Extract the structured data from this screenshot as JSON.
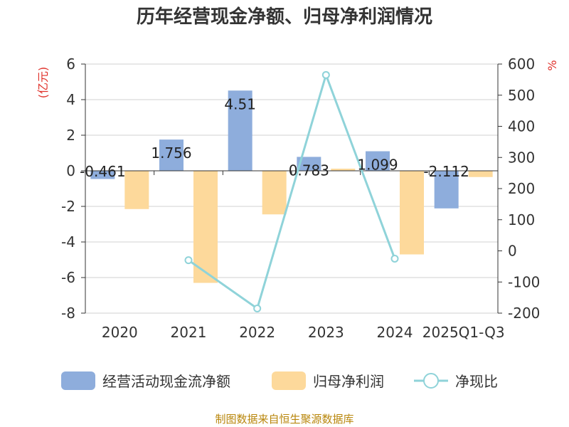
{
  "chart_data": {
    "type": "bar",
    "title": "历年经营现金净额、归母净利润情况",
    "categories": [
      "2020",
      "2021",
      "2022",
      "2023",
      "2024",
      "2025Q1-Q3"
    ],
    "y_left": {
      "unit": "(亿元)",
      "range": [
        -8,
        6
      ],
      "ticks": [
        "6",
        "4",
        "2",
        "0",
        "-2",
        "-4",
        "-6",
        "-8"
      ]
    },
    "y_right": {
      "unit": "%",
      "range": [
        -200,
        600
      ],
      "ticks": [
        "600",
        "500",
        "400",
        "300",
        "200",
        "100",
        "0",
        "-100",
        "-200"
      ]
    },
    "grid": true,
    "legend_position": "bottom",
    "series": [
      {
        "name": "经营活动现金流净额",
        "axis": "left",
        "color": "#8eaddc",
        "values": [
          -0.461,
          1.756,
          4.51,
          0.783,
          1.099,
          -2.112
        ],
        "labels": [
          "-0.461",
          "1.756",
          "4.51",
          "0.783",
          "1.099",
          "-2.112"
        ]
      },
      {
        "name": "归母净利润",
        "axis": "left",
        "color": "#fdd99b",
        "values": [
          -2.15,
          -6.3,
          -2.45,
          0.12,
          -4.7,
          -0.35
        ]
      },
      {
        "name": "净现比",
        "axis": "right",
        "type": "line",
        "color": "#8fd3d9",
        "values": [
          null,
          -30,
          -185,
          565,
          -25,
          null
        ]
      }
    ],
    "source": "制图数据来自恒生聚源数据库"
  }
}
